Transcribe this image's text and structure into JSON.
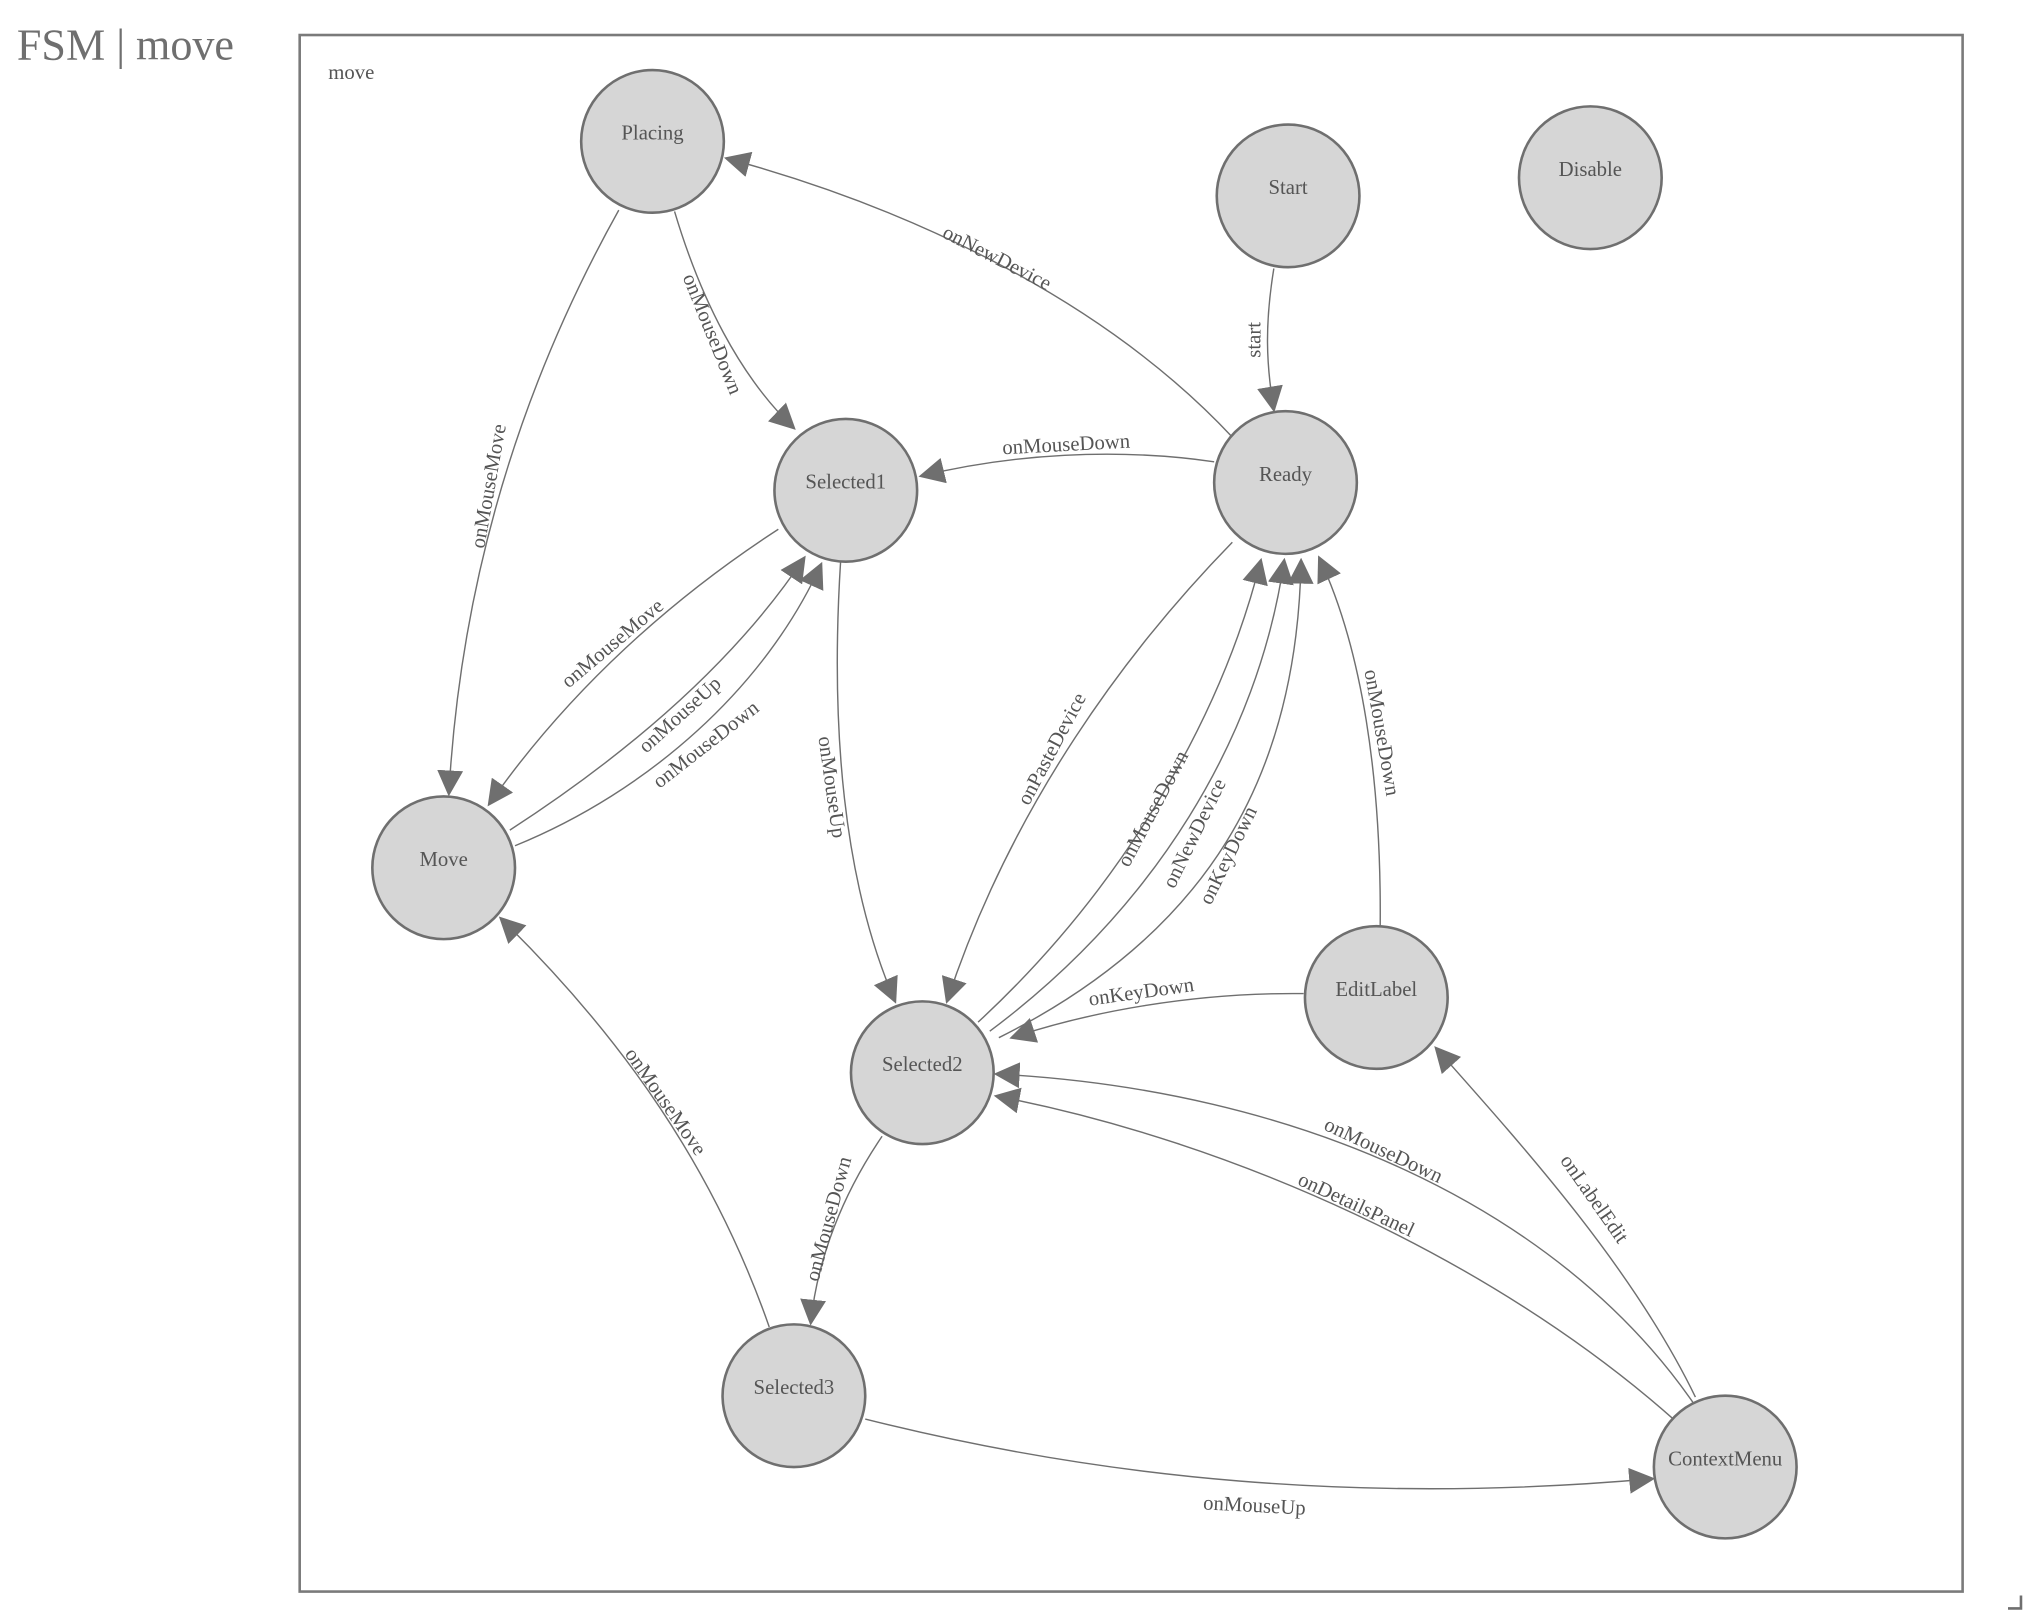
{
  "header": {
    "title": "FSM | move"
  },
  "diagram": {
    "group_label": "move",
    "colors": {
      "node_fill": "#d6d6d6",
      "stroke": "#6f6f6f",
      "text": "#555555"
    },
    "nodes": [
      "Placing",
      "Start",
      "Disable",
      "Selected1",
      "Ready",
      "Move",
      "Selected2",
      "EditLabel",
      "Selected3",
      "ContextMenu"
    ],
    "edges": [
      {
        "from": "Start",
        "to": "Ready",
        "label": "start"
      },
      {
        "from": "Ready",
        "to": "Placing",
        "label": "onNewDevice"
      },
      {
        "from": "Placing",
        "to": "Selected1",
        "label": "onMouseDown"
      },
      {
        "from": "Placing",
        "to": "Move",
        "label": "onMouseMove"
      },
      {
        "from": "Ready",
        "to": "Selected1",
        "label": "onMouseDown"
      },
      {
        "from": "Selected1",
        "to": "Move",
        "label": "onMouseMove"
      },
      {
        "from": "Move",
        "to": "Selected1",
        "label": "onMouseUp"
      },
      {
        "from": "Move",
        "to": "Selected1",
        "label": "onMouseDown"
      },
      {
        "from": "Selected1",
        "to": "Selected2",
        "label": "onMouseUp"
      },
      {
        "from": "Ready",
        "to": "Selected2",
        "label": "onPasteDevice"
      },
      {
        "from": "Selected2",
        "to": "Ready",
        "label": "onMouseDown"
      },
      {
        "from": "Selected2",
        "to": "Ready",
        "label": "onNewDevice"
      },
      {
        "from": "Selected2",
        "to": "Ready",
        "label": "onKeyDown"
      },
      {
        "from": "EditLabel",
        "to": "Ready",
        "label": "onMouseDown"
      },
      {
        "from": "EditLabel",
        "to": "Selected2",
        "label": "onKeyDown"
      },
      {
        "from": "ContextMenu",
        "to": "Selected2",
        "label": "onMouseDown"
      },
      {
        "from": "ContextMenu",
        "to": "Selected2",
        "label": "onDetailsPanel"
      },
      {
        "from": "ContextMenu",
        "to": "EditLabel",
        "label": "onLabelEdit"
      },
      {
        "from": "Selected2",
        "to": "Selected3",
        "label": "onMouseDown"
      },
      {
        "from": "Selected3",
        "to": "Move",
        "label": "onMouseMove"
      },
      {
        "from": "Selected3",
        "to": "ContextMenu",
        "label": "onMouseUp"
      }
    ]
  }
}
